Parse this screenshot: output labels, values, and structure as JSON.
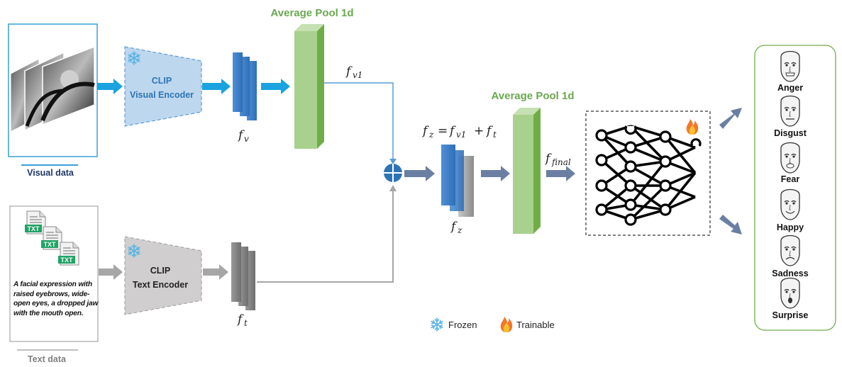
{
  "labels": {
    "avg_pool_1": "Average Pool 1d",
    "avg_pool_2": "Average Pool 1d",
    "visual_encoder_line1": "CLIP",
    "visual_encoder_line2": "Visual Encoder",
    "text_encoder_line1": "CLIP",
    "text_encoder_line2": "Text Encoder",
    "visual_data": "Visual data",
    "text_data": "Text data",
    "txt_badge": "TXT",
    "text_description": "A facial expression with raised eyebrows, wide-open eyes, a dropped jaw with the mouth open.",
    "legend_frozen": "Frozen",
    "legend_trainable": "Trainable"
  },
  "math": {
    "fv": {
      "base": "f",
      "sub": "v"
    },
    "ft": {
      "base": "f",
      "sub": "t"
    },
    "fv1": {
      "base": "f",
      "sub": "v1"
    },
    "fz": {
      "base": "f",
      "sub": "z"
    },
    "ffinal": {
      "base": "f",
      "sub": "final"
    },
    "eq_lhs": {
      "base": "f",
      "sub": "z"
    },
    "eq_eq": "=",
    "eq_a": {
      "base": "f",
      "sub": "v1"
    },
    "eq_plus": "+",
    "eq_b": {
      "base": "f",
      "sub": "t"
    }
  },
  "emotions": [
    "Anger",
    "Disgust",
    "Fear",
    "Happy",
    "Sadness",
    "Surprise"
  ],
  "colors": {
    "blue_arrow": "#1aa3e0",
    "gray_arrow": "#a6a6a6",
    "dark_arrow": "#6b7fa3",
    "green_block": "#a9d18e",
    "visual_encoder_fill": "#bdd7ee",
    "text_encoder_fill": "#d0cece",
    "emotion_border": "#70ad47"
  },
  "icons": [
    "snowflake-icon",
    "flame-icon",
    "txt-file-icon",
    "plus-circle-icon",
    "neural-network-icon",
    "face-icon"
  ]
}
